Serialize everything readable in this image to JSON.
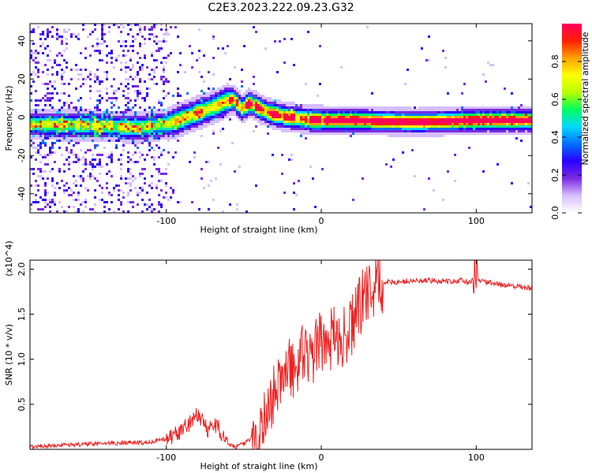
{
  "title": "C2E3.2023.222.09.23.G32",
  "chart_data": [
    {
      "type": "heatmap",
      "title": "C2E3.2023.222.09.23.G32",
      "xlabel": "Height of straight line (km)",
      "ylabel": "Frequency (Hz)",
      "xlim": [
        -188,
        136
      ],
      "ylim": [
        -50,
        49
      ],
      "xticks": [
        -100,
        0,
        100
      ],
      "xtick_labels": [
        "-100",
        "0",
        "100"
      ],
      "yticks": [
        -40,
        -20,
        0,
        20,
        40
      ],
      "ytick_labels": [
        "-40",
        "-20",
        "0",
        "20",
        "40"
      ],
      "colorbar": {
        "label": "Normalized spectral amplitude",
        "range": [
          0,
          1
        ],
        "ticks": [
          0,
          0.2,
          0.4,
          0.6,
          0.8
        ],
        "tick_labels": [
          "0.0",
          "0.2",
          "0.4",
          "0.6",
          "0.8"
        ],
        "colors": [
          "#ffffff",
          "#d6bfff",
          "#7a2be2",
          "#2b00ff",
          "#0070ff",
          "#00d8ff",
          "#00ff60",
          "#b8ff00",
          "#ffff00",
          "#ffa000",
          "#ff2000",
          "#ff0060"
        ]
      },
      "ridge": {
        "description": "frequency of peak spectral amplitude vs height",
        "x": [
          -188,
          -160,
          -140,
          -120,
          -100,
          -90,
          -80,
          -70,
          -62,
          -57,
          -52,
          -47,
          -42,
          -35,
          -25,
          -15,
          -5,
          5,
          20,
          60,
          100,
          136
        ],
        "y": [
          -3,
          -3.5,
          -4,
          -5,
          -3,
          0,
          3,
          6,
          9,
          10,
          5,
          8,
          6,
          3,
          1,
          0,
          -1,
          -1,
          -1,
          -2,
          -1,
          -1
        ]
      }
    },
    {
      "type": "line",
      "xlabel": "Height of straight line (km)",
      "ylabel": "SNR (10 * v/v)",
      "y_multiplier": "(x10^4)",
      "xlim": [
        -188,
        136
      ],
      "ylim": [
        0,
        2.1
      ],
      "xticks": [
        -100,
        0,
        100
      ],
      "xtick_labels": [
        "-100",
        "0",
        "100"
      ],
      "yticks": [
        0.5,
        1.0,
        1.5,
        2.0
      ],
      "ytick_labels": [
        "0.5",
        "1.0",
        "1.5",
        "2.0"
      ],
      "color": "#ee2222",
      "x": [
        -188,
        -160,
        -130,
        -110,
        -100,
        -95,
        -90,
        -85,
        -82,
        -79,
        -76,
        -73,
        -70,
        -67,
        -64,
        -60,
        -55,
        -50,
        -45,
        -40,
        -36,
        -32,
        -28,
        -24,
        -20,
        -16,
        -12,
        -8,
        -4,
        0,
        4,
        8,
        12,
        16,
        20,
        24,
        28,
        32,
        36,
        40,
        50,
        60,
        70,
        80,
        90,
        96,
        100,
        104,
        110,
        120,
        136
      ],
      "values": [
        0.03,
        0.05,
        0.07,
        0.08,
        0.12,
        0.16,
        0.22,
        0.28,
        0.36,
        0.38,
        0.3,
        0.22,
        0.26,
        0.27,
        0.14,
        0.06,
        0.03,
        0.06,
        0.12,
        0.2,
        0.35,
        0.55,
        0.7,
        0.85,
        0.9,
        0.95,
        1.05,
        1.0,
        1.1,
        1.2,
        1.2,
        1.25,
        1.3,
        1.2,
        1.4,
        1.55,
        1.7,
        1.78,
        1.82,
        1.85,
        1.86,
        1.87,
        1.87,
        1.87,
        1.87,
        1.85,
        1.9,
        1.86,
        1.84,
        1.82,
        1.79
      ]
    }
  ]
}
